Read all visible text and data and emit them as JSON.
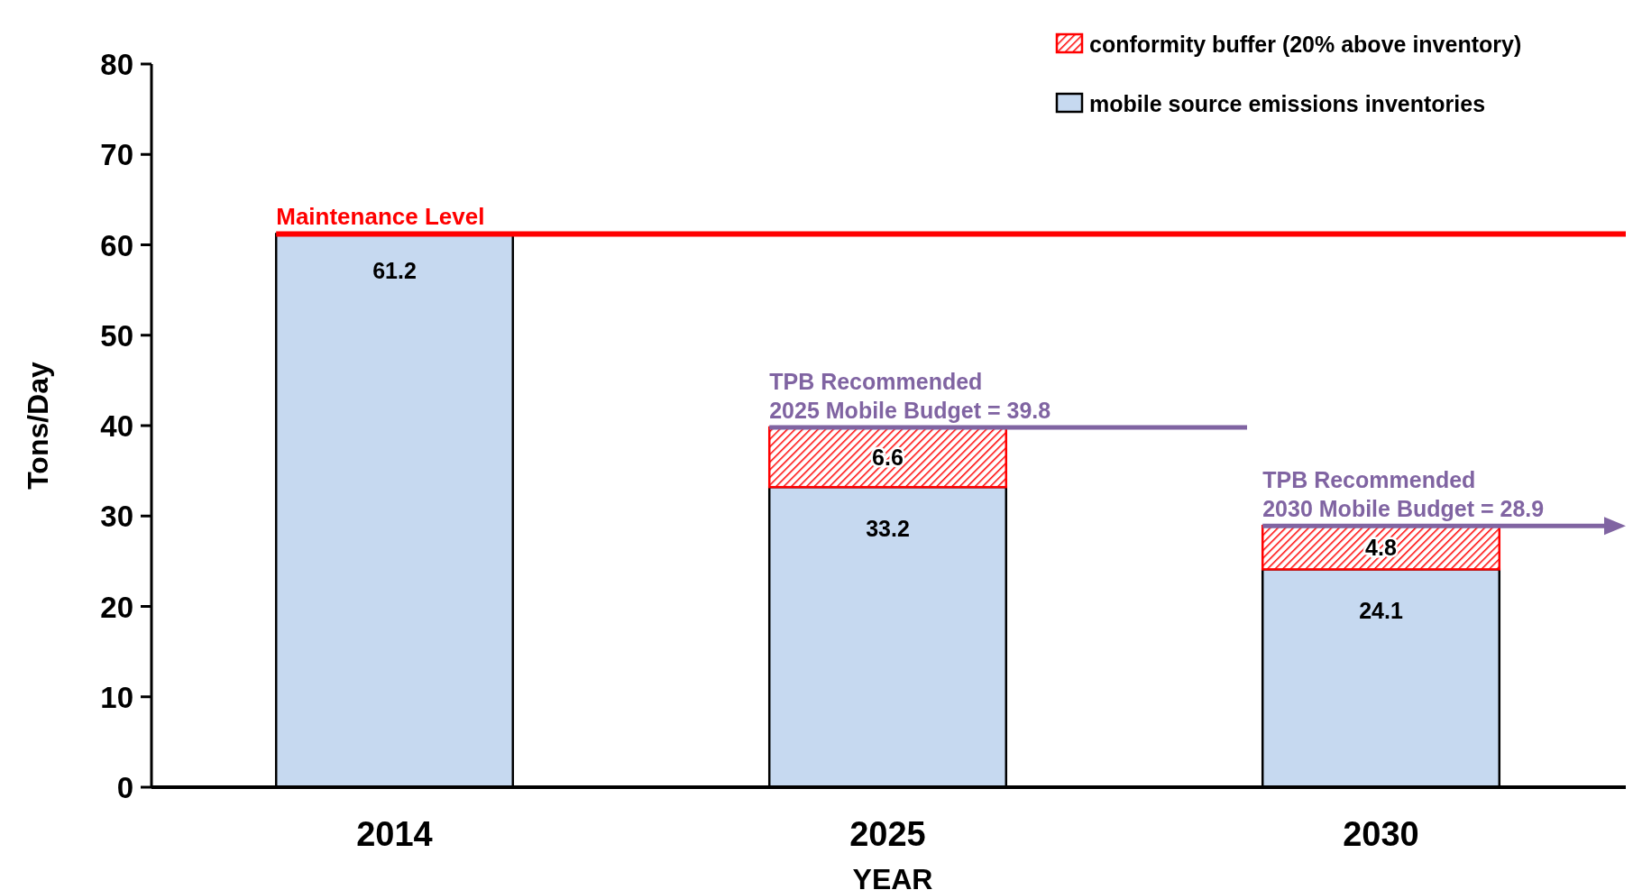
{
  "chart_data": {
    "type": "bar",
    "stacked": true,
    "xlabel": "YEAR",
    "ylabel": "Tons/Day",
    "categories": [
      "2014",
      "2025",
      "2030"
    ],
    "series": [
      {
        "name": "mobile source emissions inventories",
        "color": "#c6d9f0",
        "values": [
          61.2,
          33.2,
          24.1
        ]
      },
      {
        "name": "conformity buffer (20% above inventory)",
        "color": "#ff0000",
        "values": [
          null,
          6.6,
          4.8
        ]
      }
    ],
    "ylim": [
      0,
      80
    ],
    "yticks": [
      0,
      10,
      20,
      30,
      40,
      50,
      60,
      70,
      80
    ],
    "grid": false,
    "legend": "top right",
    "data_labels": true,
    "ref_lines": [
      {
        "axis": "y",
        "value": 61.2,
        "label": "Maintenance Level",
        "color": "#ff0000"
      },
      {
        "axis": "y",
        "value": 39.8,
        "label": "TPB Recommended\n2025 Mobile Budget = 39.8",
        "color": "#8064a2"
      },
      {
        "axis": "y",
        "value": 28.9,
        "label": "TPB Recommended\n2030 Mobile Budget = 28.9",
        "color": "#8064a2"
      }
    ]
  }
}
